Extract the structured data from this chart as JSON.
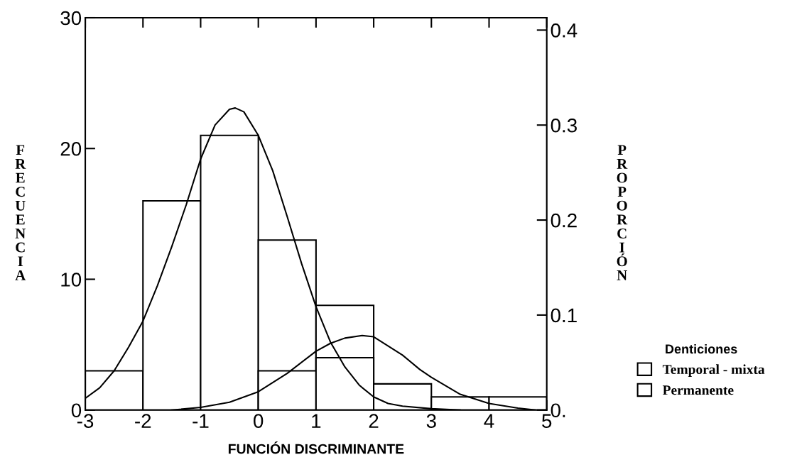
{
  "chart_data": {
    "type": "histogram",
    "xlabel": "FUNCIÓN DISCRIMINANTE",
    "ylabel": "FRECUENCIA",
    "y2label": "PROPORCIÓN",
    "legend_title": "Denticiones",
    "bins": [
      -3,
      -2,
      -1,
      0,
      1,
      2,
      3,
      4,
      5
    ],
    "series": [
      {
        "name": "Temporal - mixta",
        "color": "#ffffff",
        "values": [
          3,
          16,
          21,
          13,
          8,
          0,
          0,
          0
        ]
      },
      {
        "name": "Permanente",
        "color": "#ffffff",
        "values": [
          0,
          0,
          0,
          3,
          4,
          2,
          1,
          1
        ]
      },
      {
        "type": "line",
        "color": "#000000",
        "x": [
          -3,
          -2.75,
          -2.5,
          -2.25,
          -2,
          -1.75,
          -1.5,
          -1.25,
          -1,
          -0.75,
          -0.5,
          -0.4,
          -0.25,
          0,
          0.25,
          0.5,
          0.75,
          1,
          1.25,
          1.5,
          1.75,
          2,
          2.25,
          2.5,
          3,
          3.5
        ],
        "values": [
          0.9,
          1.7,
          3.0,
          4.8,
          6.8,
          9.5,
          12.5,
          15.7,
          19.2,
          21.8,
          23.0,
          23.1,
          22.8,
          21.0,
          18.3,
          14.8,
          11.2,
          7.9,
          5.2,
          3.3,
          1.9,
          1.0,
          0.5,
          0.3,
          0.1,
          0
        ]
      },
      {
        "type": "line",
        "color": "#000000",
        "x": [
          -1.5,
          -1,
          -0.5,
          0,
          0.5,
          1,
          1.25,
          1.5,
          1.8,
          2,
          2.5,
          2.8,
          3,
          3.5,
          4,
          4.5,
          4.8
        ],
        "values": [
          0,
          0.2,
          0.6,
          1.4,
          2.8,
          4.5,
          5.1,
          5.5,
          5.7,
          5.6,
          4.2,
          3.1,
          2.5,
          1.2,
          0.5,
          0.15,
          0
        ]
      }
    ],
    "xlim": [
      -3,
      5
    ],
    "xticks": [
      -3,
      -2,
      -1,
      0,
      1,
      2,
      3,
      4,
      5
    ],
    "ylim": [
      0,
      30
    ],
    "yticks": [
      0,
      10,
      20,
      30
    ],
    "y2lim": [
      0,
      0.413
    ],
    "y2ticks": [
      {
        "value": 0,
        "label": "0."
      },
      0.1,
      0.2,
      0.3,
      0.4
    ],
    "legend": "bottom right",
    "grid": false
  }
}
